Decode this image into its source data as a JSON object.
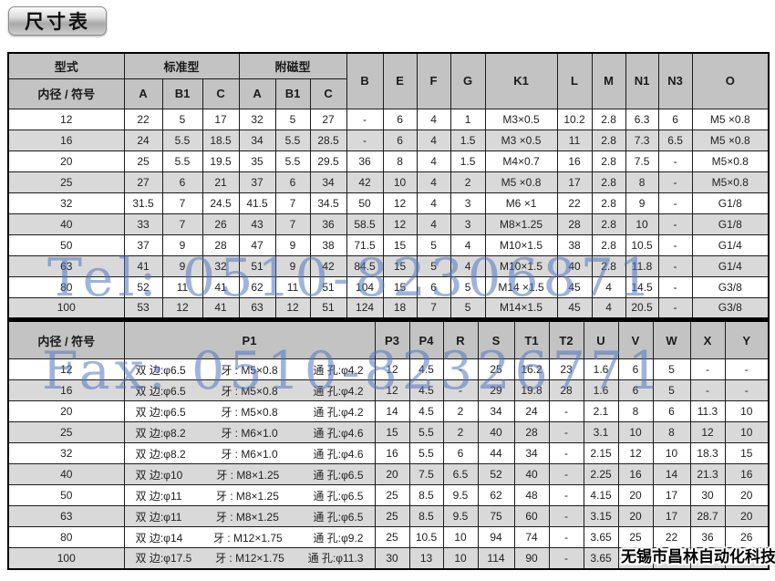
{
  "title": "尺寸表",
  "watermarks": {
    "tel": "Tel: 0510-82306871",
    "fax": "Fax: 0510-82326771",
    "company": "无锡市昌林自动化科技"
  },
  "table1": {
    "header": {
      "model": "型式",
      "bore_label": "内径 / 符号",
      "standard": "标准型",
      "magnetic": "附磁型",
      "sub": [
        "A",
        "B1",
        "C",
        "A",
        "B1",
        "C"
      ],
      "cols": [
        "B",
        "E",
        "F",
        "G",
        "K1",
        "L",
        "M",
        "N1",
        "N3",
        "O"
      ]
    },
    "rows": [
      {
        "bore": "12",
        "cells": [
          "22",
          "5",
          "17",
          "32",
          "5",
          "27",
          "-",
          "6",
          "4",
          "1",
          "M3×0.5",
          "10.2",
          "2.8",
          "6.3",
          "6",
          "M5 ×0.8"
        ]
      },
      {
        "bore": "16",
        "cells": [
          "24",
          "5.5",
          "18.5",
          "34",
          "5.5",
          "28.5",
          "-",
          "6",
          "4",
          "1.5",
          "M3 ×0.5",
          "11",
          "2.8",
          "7.3",
          "6.5",
          "M5 ×0.8"
        ]
      },
      {
        "bore": "20",
        "cells": [
          "25",
          "5.5",
          "19.5",
          "35",
          "5.5",
          "29.5",
          "36",
          "8",
          "4",
          "1.5",
          "M4×0.7",
          "16",
          "2.8",
          "7.5",
          "-",
          "M5×0.8"
        ]
      },
      {
        "bore": "25",
        "cells": [
          "27",
          "6",
          "21",
          "37",
          "6",
          "34",
          "42",
          "10",
          "4",
          "2",
          "M5 ×0.8",
          "17",
          "2.8",
          "8",
          "-",
          "M5×0.8"
        ]
      },
      {
        "bore": "32",
        "cells": [
          "31.5",
          "7",
          "24.5",
          "41.5",
          "7",
          "34.5",
          "50",
          "12",
          "4",
          "3",
          "M6 ×1",
          "22",
          "2.8",
          "9",
          "-",
          "G1/8"
        ]
      },
      {
        "bore": "40",
        "cells": [
          "33",
          "7",
          "26",
          "43",
          "7",
          "36",
          "58.5",
          "12",
          "4",
          "3",
          "M8×1.25",
          "28",
          "2.8",
          "10",
          "-",
          "G1/8"
        ]
      },
      {
        "bore": "50",
        "cells": [
          "37",
          "9",
          "28",
          "47",
          "9",
          "38",
          "71.5",
          "15",
          "5",
          "4",
          "M10×1.5",
          "38",
          "2.8",
          "10.5",
          "-",
          "G1/4"
        ]
      },
      {
        "bore": "63",
        "cells": [
          "41",
          "9",
          "32",
          "51",
          "9",
          "42",
          "84.5",
          "15",
          "5",
          "4",
          "M10×1.5",
          "40",
          "2.8",
          "11.8",
          "-",
          "G1/4"
        ]
      },
      {
        "bore": "80",
        "cells": [
          "52",
          "11",
          "41",
          "62",
          "11",
          "51",
          "104",
          "15",
          "6",
          "5",
          "M14 ×1.5",
          "45",
          "4",
          "14.5",
          "-",
          "G3/8"
        ]
      },
      {
        "bore": "100",
        "cells": [
          "53",
          "12",
          "41",
          "63",
          "12",
          "51",
          "124",
          "18",
          "7",
          "5",
          "M14×1.5",
          "45",
          "4",
          "20.5",
          "-",
          "G3/8"
        ]
      }
    ]
  },
  "table2": {
    "header": {
      "bore_label": "内径 / 符号",
      "p1": "P1",
      "cols": [
        "P3",
        "P4",
        "R",
        "S",
        "T1",
        "T2",
        "U",
        "V",
        "W",
        "X",
        "Y"
      ]
    },
    "rows": [
      {
        "bore": "12",
        "p1": {
          "side": "双 边:φ6.5",
          "thread": "牙 : M5×0.8",
          "hole": "通 孔:φ4.2"
        },
        "cells": [
          "12",
          "4.5",
          "-",
          "25",
          "16.2",
          "23",
          "1.6",
          "6",
          "5",
          "-",
          "-"
        ]
      },
      {
        "bore": "16",
        "p1": {
          "side": "双 边:φ6.5",
          "thread": "牙 : M5×0.8",
          "hole": "通 孔:φ4.2"
        },
        "cells": [
          "12",
          "4.5",
          "-",
          "29",
          "19.8",
          "28",
          "1.6",
          "6",
          "5",
          "-",
          "-"
        ]
      },
      {
        "bore": "20",
        "p1": {
          "side": "双 边:φ6.5",
          "thread": "牙 : M5×0.8",
          "hole": "通 孔:φ4.2"
        },
        "cells": [
          "14",
          "4.5",
          "2",
          "34",
          "24",
          "-",
          "2.1",
          "8",
          "6",
          "11.3",
          "10"
        ]
      },
      {
        "bore": "25",
        "p1": {
          "side": "双 边:φ8.2",
          "thread": "牙 : M6×1.0",
          "hole": "通 孔:φ4.6"
        },
        "cells": [
          "15",
          "5.5",
          "2",
          "40",
          "28",
          "-",
          "3.1",
          "10",
          "8",
          "12",
          "10"
        ]
      },
      {
        "bore": "32",
        "p1": {
          "side": "双 边:φ8.2",
          "thread": "牙 : M6×1.0",
          "hole": "通 孔:φ4.6"
        },
        "cells": [
          "16",
          "5.5",
          "6",
          "44",
          "34",
          "-",
          "2.15",
          "12",
          "10",
          "18.3",
          "15"
        ]
      },
      {
        "bore": "40",
        "p1": {
          "side": "双 边:φ10",
          "thread": "牙 : M8×1.25",
          "hole": "通 孔:φ6.5"
        },
        "cells": [
          "20",
          "7.5",
          "6.5",
          "52",
          "40",
          "-",
          "2.25",
          "16",
          "14",
          "21.3",
          "16"
        ]
      },
      {
        "bore": "50",
        "p1": {
          "side": "双 边:φ11",
          "thread": "牙 : M8×1.25",
          "hole": "通 孔:φ6.5"
        },
        "cells": [
          "25",
          "8.5",
          "9.5",
          "62",
          "48",
          "-",
          "4.15",
          "20",
          "17",
          "30",
          "20"
        ]
      },
      {
        "bore": "63",
        "p1": {
          "side": "双 边:φ11",
          "thread": "牙 : M8×1.25",
          "hole": "通 孔:φ6.5"
        },
        "cells": [
          "25",
          "8.5",
          "9.5",
          "75",
          "60",
          "-",
          "3.15",
          "20",
          "17",
          "28.7",
          "20"
        ]
      },
      {
        "bore": "80",
        "p1": {
          "side": "双 边:φ14",
          "thread": "牙 : M12×1.75",
          "hole": "通 孔:φ9.2"
        },
        "cells": [
          "25",
          "10.5",
          "10",
          "94",
          "74",
          "-",
          "3.65",
          "25",
          "22",
          "36",
          "26"
        ]
      },
      {
        "bore": "100",
        "p1": {
          "side": "双 边:φ17.5",
          "thread": "牙 : M12×1.75",
          "hole": "通 孔:φ11.3"
        },
        "cells": [
          "30",
          "13",
          "10",
          "114",
          "90",
          "-",
          "3.65",
          "",
          "",
          "",
          ""
        ]
      }
    ]
  }
}
